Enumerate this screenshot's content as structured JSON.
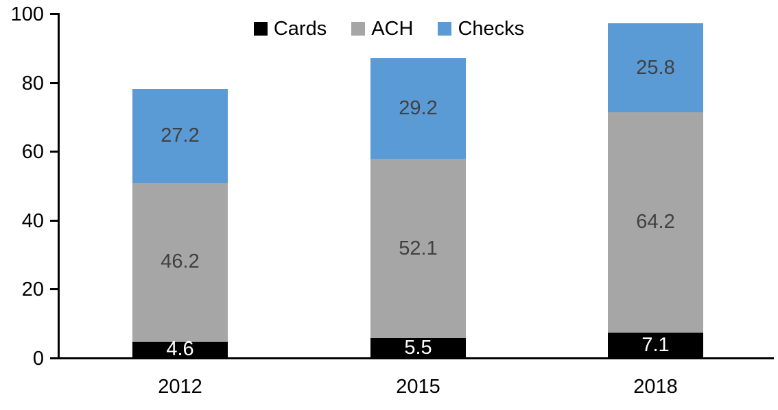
{
  "chart_data": {
    "type": "bar",
    "stacked": true,
    "title": "",
    "categories": [
      "2012",
      "2015",
      "2018"
    ],
    "series": [
      {
        "name": "Cards",
        "color": "#000000",
        "label_color": "#FFFFFF",
        "values": [
          4.6,
          5.5,
          7.1
        ]
      },
      {
        "name": "ACH",
        "color": "#A6A6A6",
        "label_color": "#404040",
        "values": [
          46.2,
          52.1,
          64.2
        ]
      },
      {
        "name": "Checks",
        "color": "#5B9BD5",
        "label_color": "#404040",
        "values": [
          27.2,
          29.2,
          25.8
        ]
      }
    ],
    "ylim": [
      0,
      100
    ],
    "yticks": [
      0,
      20,
      40,
      60,
      80,
      100
    ],
    "legend_position": "top",
    "grid": false,
    "value_labels": true,
    "axis_color": "#000000"
  }
}
